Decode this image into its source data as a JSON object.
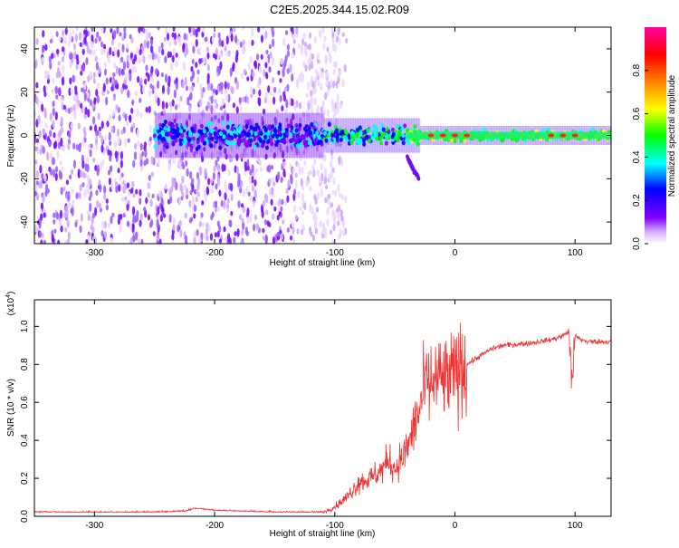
{
  "title": "C2E5.2025.344.15.02.R09",
  "chart_data": [
    {
      "type": "heatmap",
      "xlabel": "Height of straight line (km)",
      "ylabel": "Frequency (Hz)",
      "xlim": [
        -350,
        130
      ],
      "ylim": [
        -50,
        50
      ],
      "xticks": [
        -300,
        -200,
        -100,
        0,
        100
      ],
      "yticks": [
        -40,
        -20,
        0,
        20,
        40
      ],
      "colorbar": {
        "label": "Normalized spectral amplitude",
        "range": [
          0,
          1
        ],
        "ticks": [
          "0.0",
          "0.2",
          "0.4",
          "0.6",
          "0.8"
        ],
        "tick_values": [
          0.0,
          0.2,
          0.4,
          0.6,
          0.8
        ],
        "colors": [
          "#ffffff",
          "#d8b8ff",
          "#8000ff",
          "#0000ff",
          "#00ffff",
          "#00ff00",
          "#ffff00",
          "#ff8000",
          "#ff0000",
          "#ff00a0"
        ]
      },
      "description_points": {
        "noise_region_x": [
          -350,
          -100
        ],
        "band_center_hz": 0,
        "band_halfwidth_hz_near": 4,
        "tail_feature": [
          [
            -40,
            -10
          ],
          [
            -30,
            -20
          ]
        ],
        "hotspots_x": [
          -20,
          -10,
          0,
          10,
          80,
          90,
          100
        ]
      }
    },
    {
      "type": "line",
      "xlabel": "Height of straight line (km)",
      "ylabel": "SNR (10 * v/v)",
      "multiplier_label": "(x10",
      "multiplier_exp": "4",
      "multiplier_close": ")",
      "xlim": [
        -350,
        130
      ],
      "ylim": [
        0,
        1.14
      ],
      "xticks": [
        -300,
        -200,
        -100,
        0,
        100
      ],
      "yticks": [
        "0.0",
        "0.2",
        "0.4",
        "0.6",
        "0.8",
        "1.0"
      ],
      "ytick_values": [
        0.0,
        0.2,
        0.4,
        0.6,
        0.8,
        1.0
      ],
      "color": "#ee3333",
      "series": [
        {
          "name": "SNR",
          "x": [
            -350,
            -300,
            -250,
            -225,
            -215,
            -200,
            -150,
            -110,
            -100,
            -90,
            -80,
            -70,
            -60,
            -55,
            -50,
            -45,
            -40,
            -35,
            -30,
            -25,
            -20,
            -15,
            -10,
            -5,
            0,
            5,
            10,
            20,
            30,
            40,
            60,
            80,
            90,
            95,
            98,
            100,
            105,
            110,
            120,
            130
          ],
          "y": [
            0.02,
            0.02,
            0.02,
            0.025,
            0.04,
            0.03,
            0.02,
            0.02,
            0.05,
            0.1,
            0.18,
            0.2,
            0.25,
            0.3,
            0.25,
            0.3,
            0.35,
            0.45,
            0.55,
            0.68,
            0.7,
            0.72,
            0.72,
            0.72,
            0.75,
            0.78,
            0.8,
            0.84,
            0.88,
            0.9,
            0.91,
            0.93,
            0.95,
            0.98,
            0.7,
            0.95,
            0.93,
            0.92,
            0.92,
            0.92
          ]
        }
      ]
    }
  ]
}
